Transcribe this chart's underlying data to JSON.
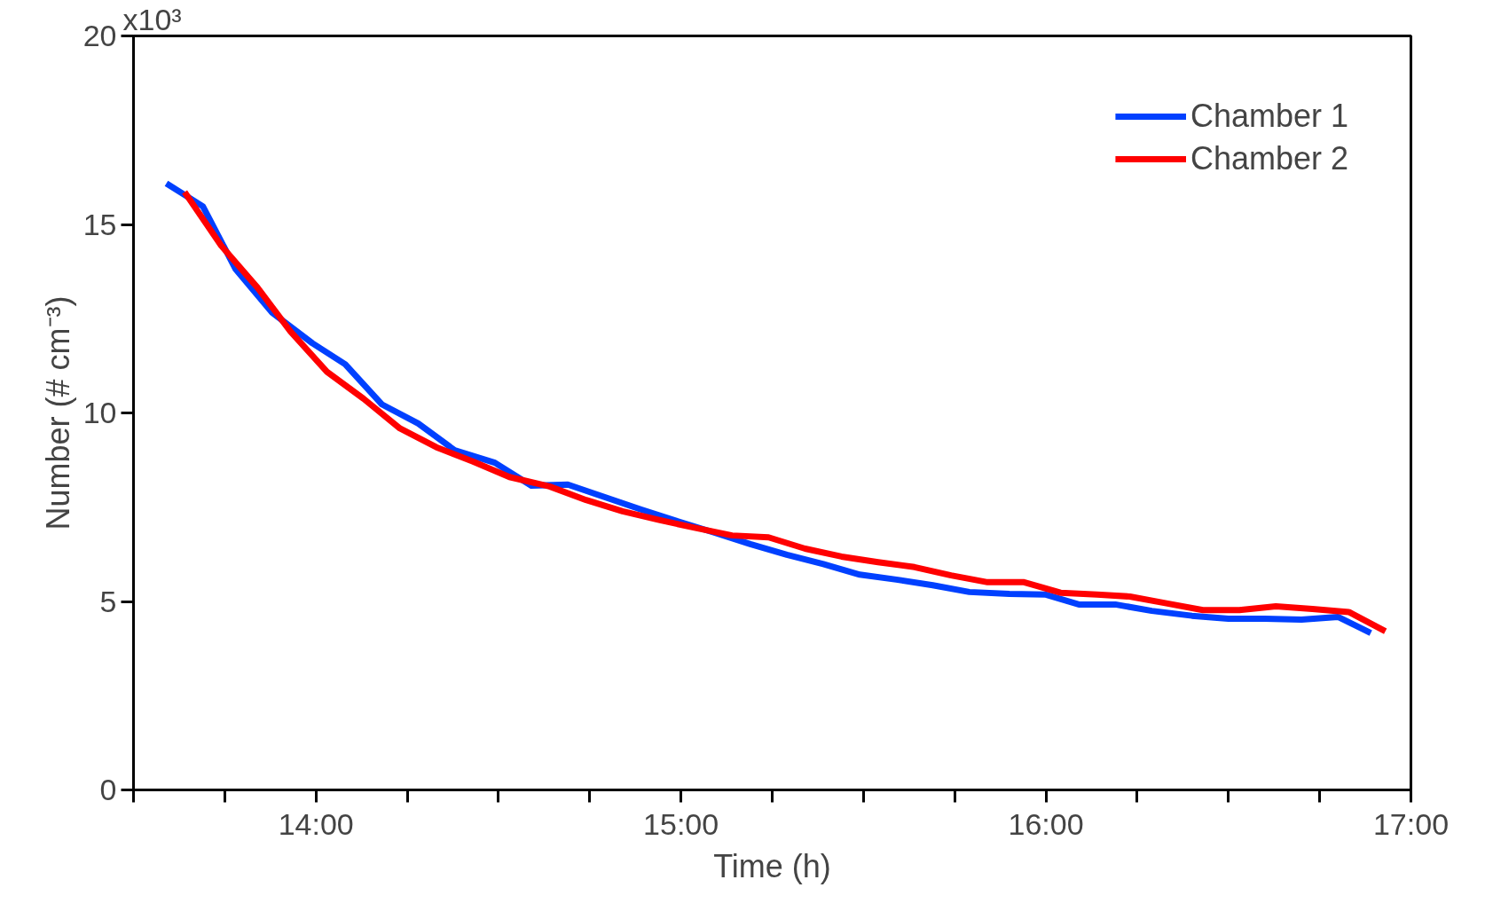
{
  "chart_data": {
    "type": "line",
    "xlabel": "Time (h)",
    "ylabel": "Number (# cm⁻³)",
    "xlim": [
      13.5,
      17
    ],
    "ylim": [
      0,
      20
    ],
    "xticks": [
      {
        "value": 13.5,
        "label": null
      },
      {
        "value": 13.75,
        "label": null
      },
      {
        "value": 14,
        "label": "14:00"
      },
      {
        "value": 14.25,
        "label": null
      },
      {
        "value": 14.5,
        "label": null
      },
      {
        "value": 14.75,
        "label": null
      },
      {
        "value": 15,
        "label": "15:00"
      },
      {
        "value": 15.25,
        "label": null
      },
      {
        "value": 15.5,
        "label": null
      },
      {
        "value": 15.75,
        "label": null
      },
      {
        "value": 16,
        "label": "16:00"
      },
      {
        "value": 16.25,
        "label": null
      },
      {
        "value": 16.5,
        "label": null
      },
      {
        "value": 16.75,
        "label": null
      },
      {
        "value": 17,
        "label": "17:00"
      }
    ],
    "yticks": [
      0,
      5,
      10,
      15,
      20
    ],
    "annotations": [
      "x10³"
    ],
    "grid": false,
    "legend": "top right",
    "marker": "none",
    "line_style": "solid",
    "series": [
      {
        "name": "Chamber 1",
        "color": "#0040ff",
        "x": [
          13.59,
          13.69,
          13.78,
          13.88,
          13.99,
          14.08,
          14.18,
          14.28,
          14.38,
          14.49,
          14.59,
          14.69,
          14.79,
          14.89,
          14.99,
          15.09,
          15.19,
          15.29,
          15.39,
          15.49,
          15.59,
          15.69,
          15.79,
          15.9,
          16.0,
          16.09,
          16.19,
          16.29,
          16.4,
          16.5,
          16.6,
          16.7,
          16.8,
          16.89
        ],
        "values": [
          16.09,
          15.48,
          13.81,
          12.66,
          11.85,
          11.29,
          10.23,
          9.72,
          9.01,
          8.68,
          8.07,
          8.1,
          7.77,
          7.44,
          7.13,
          6.83,
          6.52,
          6.24,
          5.99,
          5.71,
          5.58,
          5.43,
          5.25,
          5.2,
          5.18,
          4.92,
          4.92,
          4.75,
          4.62,
          4.54,
          4.54,
          4.52,
          4.59,
          4.16
        ]
      },
      {
        "name": "Chamber 2",
        "color": "#ff0000",
        "x": [
          13.64,
          13.74,
          13.84,
          13.93,
          14.03,
          14.13,
          14.23,
          14.33,
          14.43,
          14.53,
          14.64,
          14.74,
          14.84,
          14.94,
          15.04,
          15.14,
          15.24,
          15.34,
          15.44,
          15.54,
          15.64,
          15.74,
          15.84,
          15.94,
          16.04,
          16.14,
          16.23,
          16.33,
          16.43,
          16.53,
          16.63,
          16.73,
          16.83,
          16.93
        ],
        "values": [
          15.86,
          14.44,
          13.32,
          12.16,
          11.09,
          10.38,
          9.59,
          9.09,
          8.71,
          8.3,
          8.05,
          7.69,
          7.39,
          7.16,
          6.95,
          6.75,
          6.7,
          6.4,
          6.19,
          6.04,
          5.91,
          5.69,
          5.51,
          5.51,
          5.23,
          5.18,
          5.13,
          4.95,
          4.77,
          4.77,
          4.87,
          4.8,
          4.72,
          4.21
        ]
      }
    ]
  }
}
